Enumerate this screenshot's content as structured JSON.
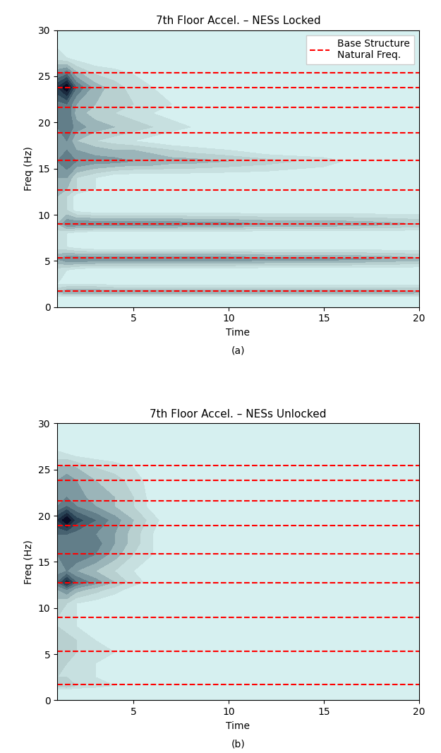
{
  "chart_data": [
    {
      "type": "heatmap",
      "title": "7th Floor Accel. – NESs Locked",
      "x_label": "Time",
      "y_label": "Freq (Hz)",
      "caption": "(a)",
      "xlim": [
        1,
        20
      ],
      "xticks": [
        5,
        10,
        15,
        20
      ],
      "ylim": [
        0,
        30
      ],
      "yticks": [
        0,
        5,
        10,
        15,
        20,
        25,
        30
      ],
      "zlim": [
        0,
        1
      ],
      "x": [
        1,
        1.5,
        2,
        3,
        4,
        5,
        6,
        7,
        8,
        10,
        12,
        15,
        18,
        20
      ],
      "y": [
        0,
        1,
        1.6,
        2.5,
        4,
        5.2,
        6.5,
        8,
        9,
        10.5,
        12,
        12.8,
        14,
        15.8,
        17,
        18,
        19.5,
        21,
        22,
        23.8,
        25.2,
        27,
        30
      ],
      "cells": [
        [
          0,
          0,
          0,
          0,
          0,
          0,
          0,
          0,
          0,
          0,
          0,
          0,
          0,
          0
        ],
        [
          0,
          0,
          0,
          0,
          0,
          0,
          0,
          0,
          0,
          0,
          0,
          0,
          0,
          0
        ],
        [
          0.3,
          0.4,
          0.4,
          0.4,
          0.4,
          0.4,
          0.4,
          0.4,
          0.4,
          0.4,
          0.4,
          0.4,
          0.4,
          0.35
        ],
        [
          0.1,
          0.1,
          0.1,
          0.1,
          0.05,
          0.05,
          0.05,
          0.05,
          0.05,
          0.05,
          0.05,
          0.05,
          0.05,
          0.05
        ],
        [
          0.15,
          0.1,
          0.05,
          0,
          0,
          0,
          0,
          0,
          0,
          0,
          0,
          0,
          0,
          0
        ],
        [
          0.4,
          0.5,
          0.5,
          0.5,
          0.5,
          0.5,
          0.5,
          0.5,
          0.5,
          0.5,
          0.45,
          0.45,
          0.4,
          0.35
        ],
        [
          0.15,
          0.1,
          0.05,
          0,
          0,
          0,
          0,
          0,
          0,
          0,
          0,
          0,
          0,
          0
        ],
        [
          0.15,
          0.1,
          0.05,
          0,
          0,
          0,
          0,
          0,
          0,
          0,
          0,
          0,
          0,
          0
        ],
        [
          0.3,
          0.5,
          0.5,
          0.5,
          0.5,
          0.5,
          0.5,
          0.5,
          0.45,
          0.45,
          0.4,
          0.4,
          0.35,
          0.3
        ],
        [
          0.3,
          0.2,
          0.05,
          0,
          0,
          0,
          0,
          0,
          0,
          0,
          0,
          0,
          0,
          0
        ],
        [
          0.3,
          0.2,
          0.05,
          0,
          0,
          0,
          0,
          0,
          0,
          0,
          0,
          0,
          0,
          0
        ],
        [
          0.35,
          0.3,
          0.2,
          0.1,
          0.05,
          0,
          0,
          0,
          0,
          0,
          0,
          0,
          0,
          0
        ],
        [
          0.4,
          0.4,
          0.2,
          0.1,
          0,
          0,
          0,
          0,
          0,
          0,
          0,
          0,
          0,
          0
        ],
        [
          0.5,
          0.6,
          0.5,
          0.45,
          0.45,
          0.4,
          0.4,
          0.35,
          0.35,
          0.3,
          0.25,
          0.15,
          0,
          0
        ],
        [
          0.5,
          0.5,
          0.4,
          0.35,
          0.3,
          0.3,
          0.25,
          0.2,
          0.15,
          0.1,
          0,
          0,
          0,
          0
        ],
        [
          0.5,
          0.5,
          0.3,
          0.2,
          0.15,
          0.1,
          0.05,
          0,
          0,
          0,
          0,
          0,
          0,
          0
        ],
        [
          0.5,
          0.6,
          0.45,
          0.35,
          0.3,
          0.25,
          0.2,
          0.15,
          0.1,
          0,
          0,
          0,
          0,
          0
        ],
        [
          0.5,
          0.6,
          0.35,
          0.25,
          0.2,
          0.15,
          0.1,
          0.05,
          0,
          0,
          0,
          0,
          0,
          0
        ],
        [
          0.55,
          0.6,
          0.4,
          0.3,
          0.25,
          0.2,
          0.15,
          0.1,
          0.05,
          0,
          0,
          0,
          0,
          0
        ],
        [
          0.8,
          1.0,
          0.6,
          0.35,
          0.25,
          0.15,
          0.1,
          0.05,
          0,
          0,
          0,
          0,
          0,
          0
        ],
        [
          0.5,
          0.6,
          0.35,
          0.2,
          0.15,
          0.1,
          0.05,
          0,
          0,
          0,
          0,
          0,
          0,
          0
        ],
        [
          0.15,
          0.1,
          0.05,
          0,
          0,
          0,
          0,
          0,
          0,
          0,
          0,
          0,
          0,
          0
        ],
        [
          0,
          0,
          0,
          0,
          0,
          0,
          0,
          0,
          0,
          0,
          0,
          0,
          0,
          0
        ]
      ],
      "series": [
        {
          "name": "Base Structure\nNatural Freq.",
          "color": "#ff0000",
          "line_style": "dashed",
          "values": [
            1.7,
            5.3,
            9.0,
            12.7,
            15.9,
            18.9,
            21.6,
            23.8,
            25.4
          ]
        }
      ],
      "legend": "upper right"
    },
    {
      "type": "heatmap",
      "title": "7th Floor Accel. – NESs Unlocked",
      "x_label": "Time",
      "y_label": "Freq (Hz)",
      "caption": "(b)",
      "xlim": [
        1,
        20
      ],
      "xticks": [
        5,
        10,
        15,
        20
      ],
      "ylim": [
        0,
        30
      ],
      "yticks": [
        0,
        5,
        10,
        15,
        20,
        25,
        30
      ],
      "zlim": [
        0,
        1
      ],
      "x": [
        1,
        1.5,
        2,
        3,
        4,
        5,
        6,
        7,
        8,
        10,
        12,
        15,
        18,
        20
      ],
      "y": [
        0,
        1,
        1.6,
        2.5,
        4,
        5.2,
        6.5,
        8,
        9,
        10.5,
        12,
        12.8,
        14,
        15.8,
        17,
        18,
        19.5,
        21,
        22,
        23.8,
        25.2,
        27,
        30
      ],
      "cells": [
        [
          0,
          0,
          0,
          0,
          0,
          0,
          0,
          0,
          0,
          0,
          0,
          0,
          0,
          0
        ],
        [
          0,
          0,
          0,
          0,
          0,
          0,
          0,
          0,
          0,
          0,
          0,
          0,
          0,
          0
        ],
        [
          0.25,
          0.3,
          0.2,
          0.15,
          0.1,
          0.05,
          0.05,
          0.05,
          0.05,
          0.05,
          0.05,
          0.05,
          0.05,
          0.05
        ],
        [
          0.2,
          0.2,
          0.15,
          0.1,
          0.05,
          0,
          0,
          0,
          0,
          0,
          0,
          0,
          0,
          0
        ],
        [
          0.25,
          0.2,
          0.15,
          0.1,
          0.05,
          0,
          0,
          0,
          0,
          0,
          0,
          0,
          0,
          0
        ],
        [
          0.3,
          0.3,
          0.2,
          0.15,
          0.1,
          0.05,
          0,
          0,
          0,
          0,
          0,
          0,
          0,
          0
        ],
        [
          0.25,
          0.25,
          0.2,
          0.1,
          0.05,
          0,
          0,
          0,
          0,
          0,
          0,
          0,
          0,
          0
        ],
        [
          0.2,
          0.15,
          0.1,
          0.05,
          0,
          0,
          0,
          0,
          0,
          0,
          0,
          0,
          0,
          0
        ],
        [
          0.2,
          0.15,
          0.1,
          0.05,
          0,
          0,
          0,
          0,
          0,
          0,
          0,
          0,
          0,
          0
        ],
        [
          0.25,
          0.2,
          0.1,
          0.05,
          0,
          0,
          0,
          0,
          0,
          0,
          0,
          0,
          0,
          0
        ],
        [
          0.4,
          0.5,
          0.35,
          0.25,
          0.15,
          0.05,
          0,
          0,
          0,
          0,
          0,
          0,
          0,
          0
        ],
        [
          0.6,
          0.85,
          0.6,
          0.45,
          0.3,
          0.15,
          0.05,
          0,
          0,
          0,
          0,
          0,
          0,
          0
        ],
        [
          0.45,
          0.5,
          0.4,
          0.3,
          0.2,
          0.1,
          0,
          0,
          0,
          0,
          0,
          0,
          0,
          0
        ],
        [
          0.5,
          0.55,
          0.6,
          0.5,
          0.35,
          0.2,
          0.1,
          0,
          0,
          0,
          0,
          0,
          0,
          0
        ],
        [
          0.55,
          0.6,
          0.6,
          0.55,
          0.4,
          0.25,
          0.1,
          0,
          0,
          0,
          0,
          0,
          0,
          0
        ],
        [
          0.6,
          0.6,
          0.55,
          0.5,
          0.4,
          0.25,
          0.1,
          0,
          0,
          0,
          0,
          0,
          0,
          0
        ],
        [
          0.8,
          1.0,
          0.75,
          0.6,
          0.45,
          0.3,
          0.15,
          0,
          0,
          0,
          0,
          0,
          0,
          0
        ],
        [
          0.5,
          0.6,
          0.5,
          0.4,
          0.3,
          0.2,
          0.05,
          0,
          0,
          0,
          0,
          0,
          0,
          0
        ],
        [
          0.45,
          0.5,
          0.45,
          0.35,
          0.3,
          0.2,
          0.05,
          0,
          0,
          0,
          0,
          0,
          0,
          0
        ],
        [
          0.4,
          0.45,
          0.4,
          0.3,
          0.25,
          0.15,
          0.05,
          0,
          0,
          0,
          0,
          0,
          0,
          0
        ],
        [
          0.3,
          0.35,
          0.3,
          0.2,
          0.15,
          0.1,
          0,
          0,
          0,
          0,
          0,
          0,
          0,
          0
        ],
        [
          0.1,
          0.05,
          0,
          0,
          0,
          0,
          0,
          0,
          0,
          0,
          0,
          0,
          0,
          0
        ],
        [
          0,
          0,
          0,
          0,
          0,
          0,
          0,
          0,
          0,
          0,
          0,
          0,
          0,
          0
        ]
      ],
      "series": [
        {
          "color": "#ff0000",
          "line_style": "dashed",
          "values": [
            1.7,
            5.3,
            9.0,
            12.7,
            15.9,
            18.9,
            21.6,
            23.8,
            25.4
          ]
        }
      ]
    }
  ]
}
